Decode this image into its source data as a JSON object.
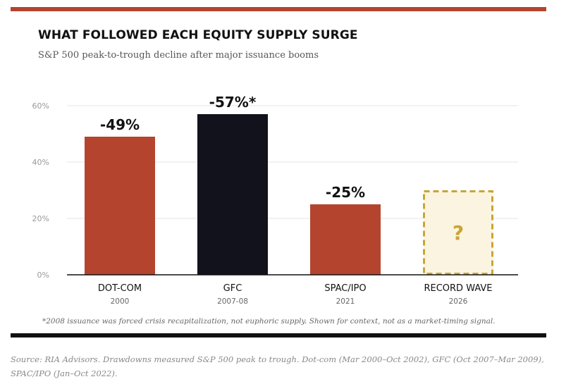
{
  "header": {
    "title": "WHAT FOLLOWED EACH EQUITY SUPPLY SURGE",
    "subtitle": "S&P 500 peak-to-trough decline after major issuance booms"
  },
  "chart_data": {
    "type": "bar",
    "title": "WHAT FOLLOWED EACH EQUITY SUPPLY SURGE",
    "subtitle": "S&P 500 peak-to-trough decline after major issuance booms",
    "categories": [
      "DOT-COM",
      "GFC",
      "SPAC/IPO",
      "RECORD WAVE"
    ],
    "category_years": [
      "2000",
      "2007-08",
      "2021",
      "2026"
    ],
    "values": [
      49,
      57,
      25,
      null
    ],
    "data_labels": [
      "-49%",
      "-57%*",
      "-25%",
      "?"
    ],
    "bar_colors": [
      "#b5442f",
      "#12121c",
      "#b5442f",
      "#fbf4e0"
    ],
    "placeholder_bar": {
      "category": "RECORD WAVE",
      "value": 30,
      "fill": "#fbf4e0",
      "border": "#c8a535",
      "label_color": "#c8a535"
    },
    "ylim": [
      0,
      60
    ],
    "y_ticks": [
      0,
      20,
      40,
      60
    ],
    "y_tick_labels": [
      "0%",
      "20%",
      "40%",
      "60%"
    ],
    "grid": true,
    "legend": "none"
  },
  "footnote": "*2008 issuance was forced crisis recapitalization, not euphoric supply. Shown for context, not as a market-timing signal.",
  "source": "Source: RIA Advisors. Drawdowns measured S&P 500 peak to trough. Dot-com (Mar 2000–Oct 2002), GFC (Oct 2007–Mar 2009), SPAC/IPO (Jan–Oct 2022).",
  "colors": {
    "accent_red": "#b5442f",
    "dark": "#12121c",
    "placeholder_fill": "#fbf4e0",
    "placeholder_border": "#c8a535",
    "grid": "#e6e6e6"
  }
}
